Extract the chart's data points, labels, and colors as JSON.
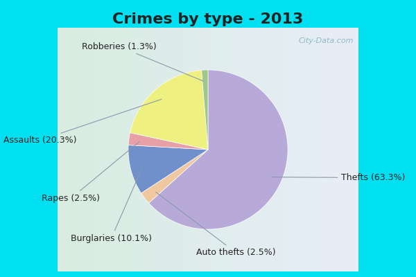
{
  "title": "Crimes by type - 2013",
  "slices": [
    {
      "label": "Thefts",
      "pct": 63.3,
      "color": "#b8aad8"
    },
    {
      "label": "Auto thefts",
      "pct": 2.5,
      "color": "#f0c8a0"
    },
    {
      "label": "Burglaries",
      "pct": 10.1,
      "color": "#7090cc"
    },
    {
      "label": "Rapes",
      "pct": 2.5,
      "color": "#e8a0a8"
    },
    {
      "label": "Assaults",
      "pct": 20.3,
      "color": "#eef080"
    },
    {
      "label": "Robberies",
      "pct": 1.3,
      "color": "#a0c888"
    }
  ],
  "bg_cyan": "#00e0f0",
  "bg_chart": "#d8ece0",
  "bg_chart_right": "#e0eaf8",
  "title_fontsize": 16,
  "label_fontsize": 9,
  "title_color": "#222222",
  "label_color": "#222222",
  "watermark": "City-Data.com",
  "watermark_color": "#90b8c8",
  "startangle": 90,
  "counterclock": false
}
